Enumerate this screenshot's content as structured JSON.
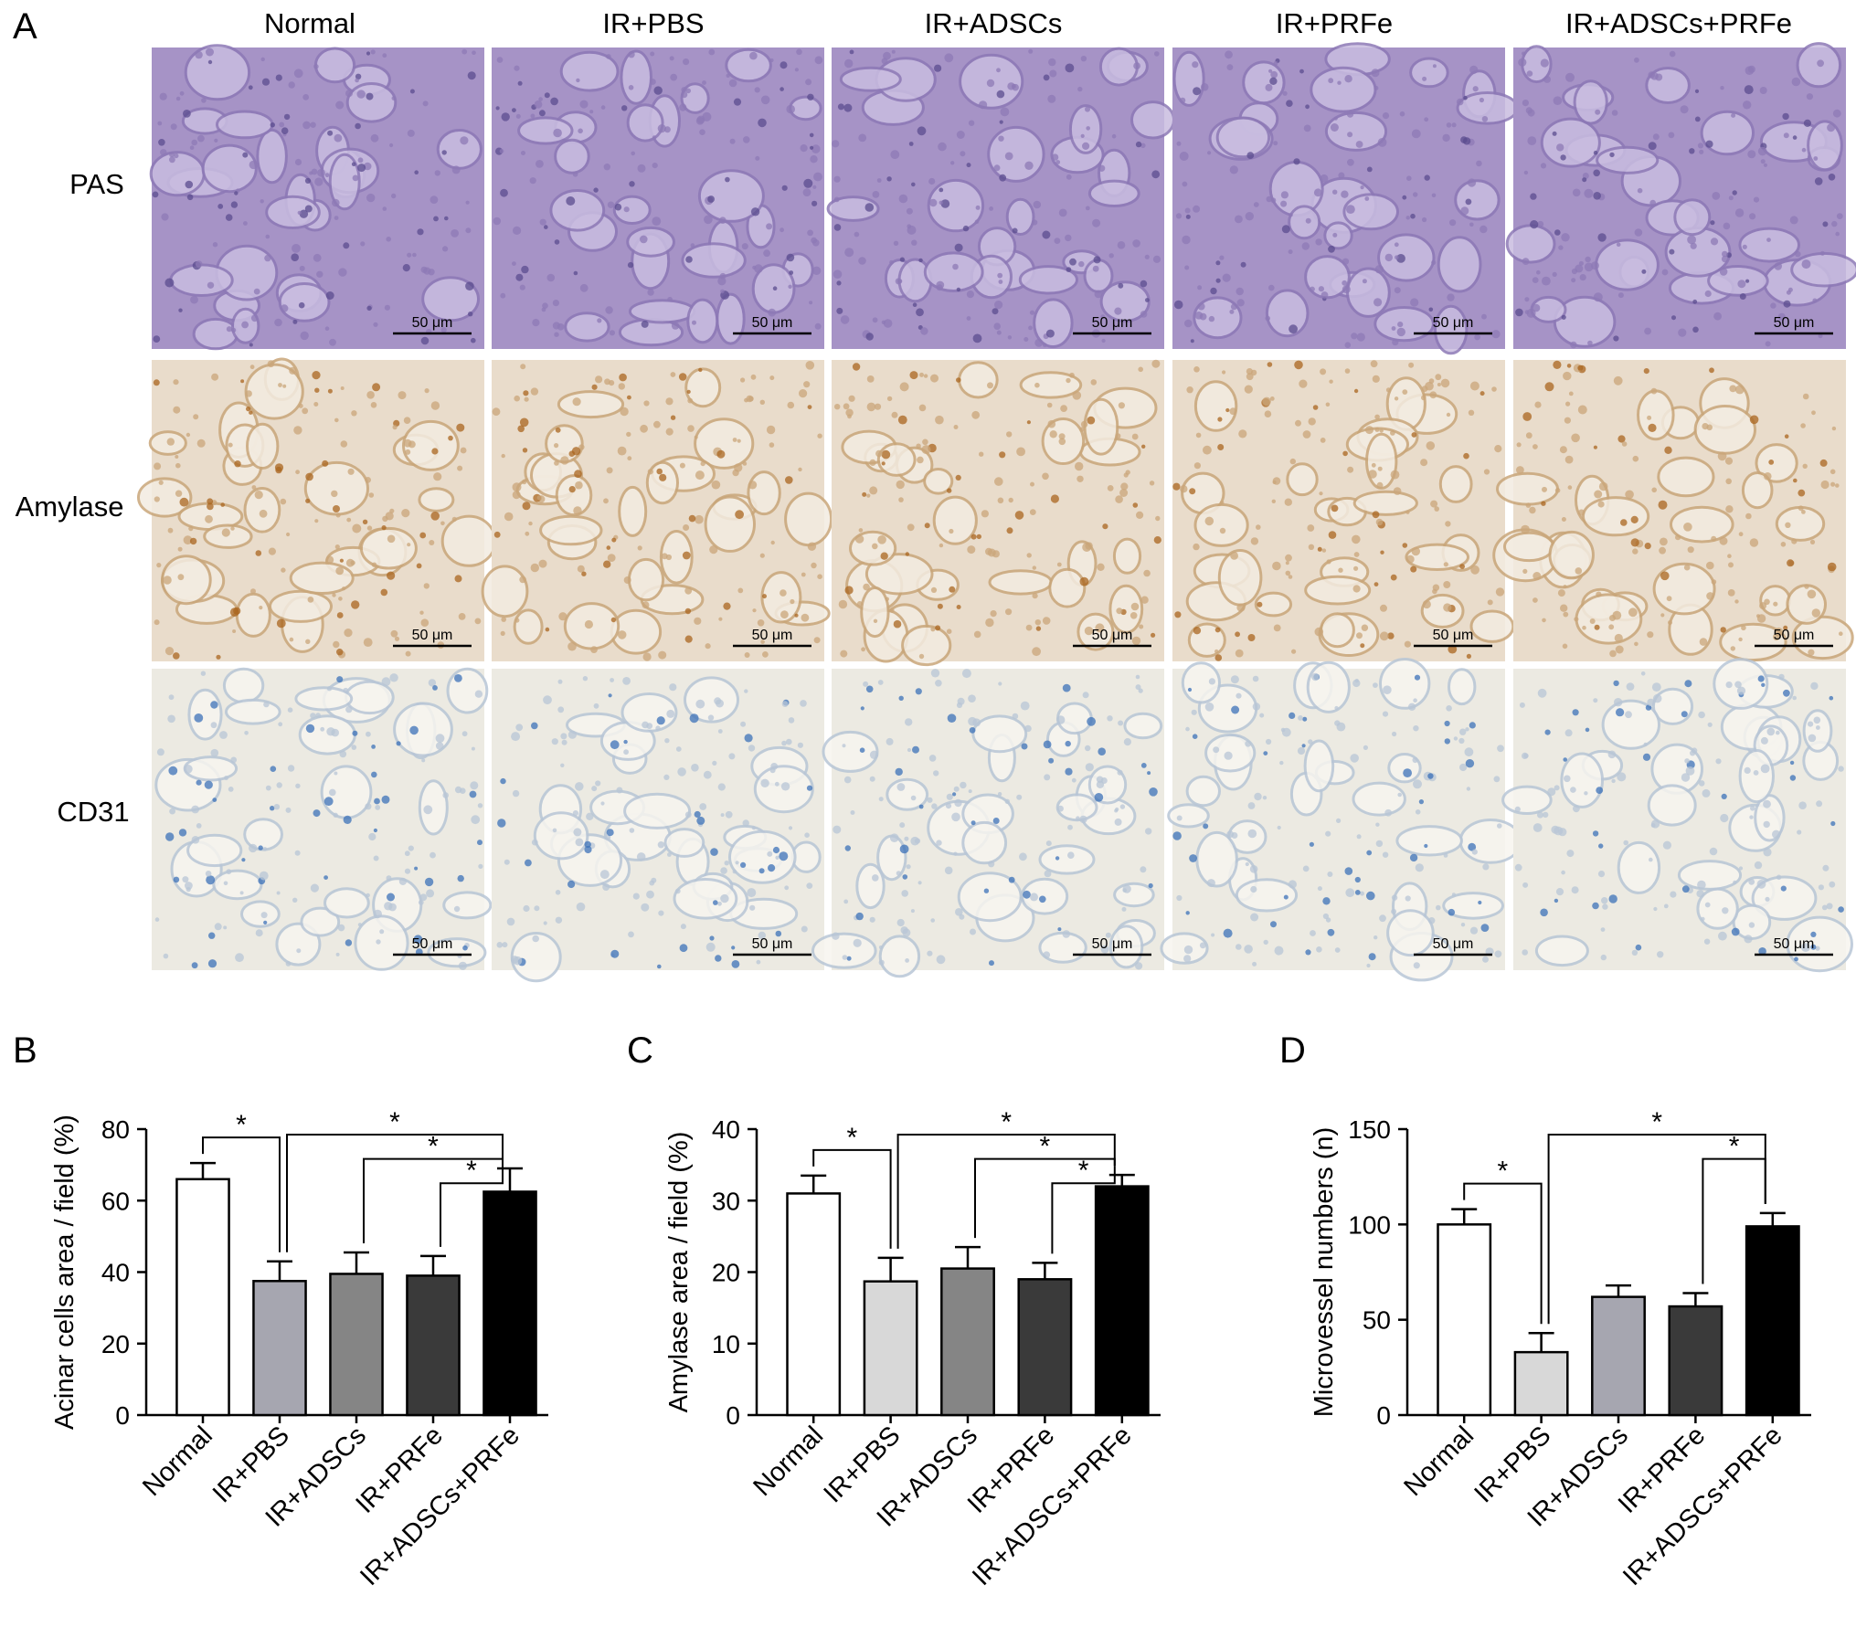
{
  "panel_a": {
    "letter": "A",
    "columns": [
      "Normal",
      "IR+PBS",
      "IR+ADSCs",
      "IR+PRFe",
      "IR+ADSCs+PRFe"
    ],
    "rows": [
      "PAS",
      "Amylase",
      "CD31"
    ],
    "scale_bar_label": "50 μm",
    "row_palettes": [
      {
        "bg": "#a693c6",
        "mid": "#8d79b6",
        "dark": "#5b4c8f",
        "light": "#c9bde0"
      },
      {
        "bg": "#e9dccb",
        "mid": "#c9a67a",
        "dark": "#a9651f",
        "light": "#f3ece1"
      },
      {
        "bg": "#eceae2",
        "mid": "#b8c6d6",
        "dark": "#3c72b8",
        "light": "#f7f5ef"
      }
    ]
  },
  "colors": {
    "Normal": "#ffffff",
    "IR+PBS": "#a6a6b0",
    "IR+PBS light": "#d8d8d8",
    "IR+ADSCs": "#858585",
    "IR+PRFe": "#3a3a3a",
    "IR+ADSCs+PRFe": "#000000"
  },
  "chart_data": [
    {
      "panel": "B",
      "type": "bar",
      "categories": [
        "Normal",
        "IR+PBS",
        "IR+ADSCs",
        "IR+PRFe",
        "IR+ADSCs+PRFe"
      ],
      "values": [
        66,
        37.5,
        39.5,
        39,
        62.5
      ],
      "errors": [
        4.5,
        5.5,
        6,
        5.5,
        6.5
      ],
      "bar_colors": [
        "#ffffff",
        "#a6a6b0",
        "#858585",
        "#3a3a3a",
        "#000000"
      ],
      "ylabel": "Acinar cells area / field (%)",
      "ylim": [
        0,
        80
      ],
      "yticks": [
        0,
        20,
        40,
        60,
        80
      ],
      "significance": [
        {
          "from": 0,
          "to": 1,
          "label": "*"
        },
        {
          "from": 1,
          "to": 4,
          "label": "*"
        },
        {
          "from": 2,
          "to": 4,
          "label": "*"
        },
        {
          "from": 3,
          "to": 4,
          "label": "*"
        }
      ]
    },
    {
      "panel": "C",
      "type": "bar",
      "categories": [
        "Normal",
        "IR+PBS",
        "IR+ADSCs",
        "IR+PRFe",
        "IR+ADSCs+PRFe"
      ],
      "values": [
        31,
        18.7,
        20.5,
        19,
        32
      ],
      "errors": [
        2.5,
        3.3,
        3,
        2.3,
        1.6
      ],
      "bar_colors": [
        "#ffffff",
        "#d8d8d8",
        "#858585",
        "#3a3a3a",
        "#000000"
      ],
      "ylabel": "Amylase area / field (%)",
      "ylim": [
        0,
        40
      ],
      "yticks": [
        0,
        10,
        20,
        30,
        40
      ],
      "significance": [
        {
          "from": 0,
          "to": 1,
          "label": "*"
        },
        {
          "from": 1,
          "to": 4,
          "label": "*"
        },
        {
          "from": 2,
          "to": 4,
          "label": "*"
        },
        {
          "from": 3,
          "to": 4,
          "label": "*"
        }
      ]
    },
    {
      "panel": "D",
      "type": "bar",
      "categories": [
        "Normal",
        "IR+PBS",
        "IR+ADSCs",
        "IR+PRFe",
        "IR+ADSCs+PRFe"
      ],
      "values": [
        100,
        33,
        62,
        57,
        99
      ],
      "errors": [
        8,
        10,
        6,
        7,
        7
      ],
      "bar_colors": [
        "#ffffff",
        "#d8d8d8",
        "#a6a6b0",
        "#3a3a3a",
        "#000000"
      ],
      "ylabel": "Microvessel numbers (n)",
      "ylim": [
        0,
        150
      ],
      "yticks": [
        0,
        50,
        100,
        150
      ],
      "significance": [
        {
          "from": 0,
          "to": 1,
          "label": "*"
        },
        {
          "from": 1,
          "to": 4,
          "label": "*"
        },
        {
          "from": 3,
          "to": 4,
          "label": "*"
        }
      ]
    }
  ]
}
